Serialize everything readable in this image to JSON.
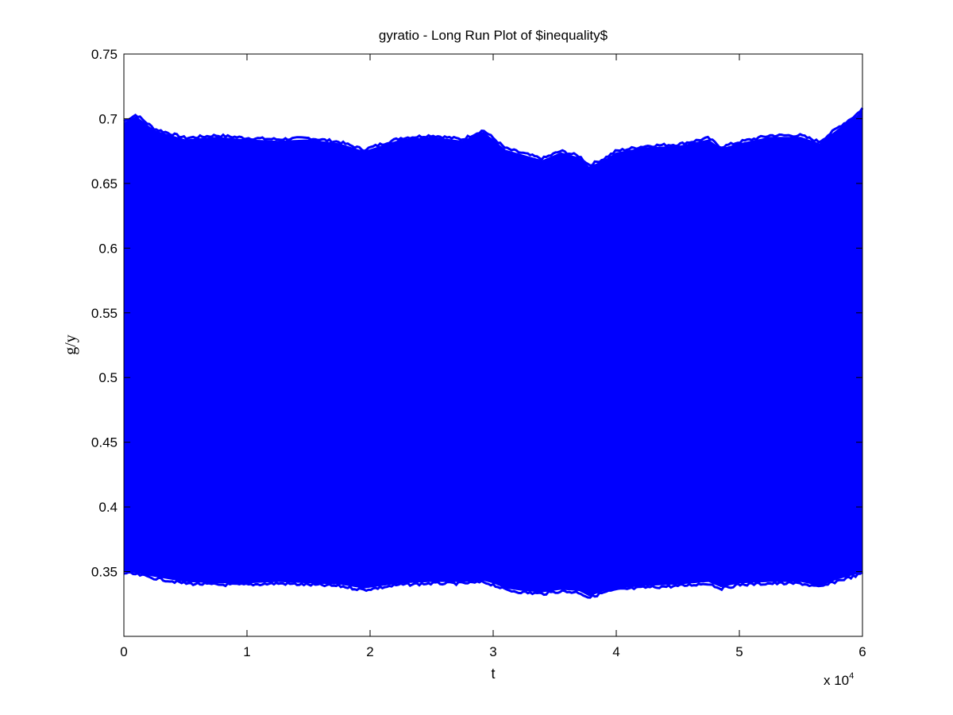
{
  "chart_data": {
    "type": "area",
    "title": "gyratio - Long Run Plot of $inequality$",
    "xlabel": "t",
    "ylabel": "g/y",
    "x_multiplier": {
      "prefix": "x 10",
      "exponent": "4"
    },
    "xlim": [
      0,
      6
    ],
    "ylim": [
      0.3,
      0.75
    ],
    "xticks": [
      "0",
      "1",
      "2",
      "3",
      "4",
      "5",
      "6"
    ],
    "yticks": [
      "0.35",
      "0.4",
      "0.45",
      "0.5",
      "0.55",
      "0.6",
      "0.65",
      "0.7",
      "0.75"
    ],
    "grid": false,
    "fill_color": "#0000ff",
    "x": [
      0,
      0.1,
      0.25,
      0.5,
      0.75,
      1.0,
      1.25,
      1.5,
      1.75,
      1.95,
      2.25,
      2.5,
      2.75,
      2.92,
      3.0,
      3.1,
      3.25,
      3.4,
      3.55,
      3.7,
      3.78,
      3.9,
      4.0,
      4.25,
      4.5,
      4.75,
      4.85,
      5.0,
      5.25,
      5.5,
      5.65,
      5.8,
      5.95,
      6.0
    ],
    "upper": [
      0.697,
      0.702,
      0.691,
      0.684,
      0.686,
      0.684,
      0.683,
      0.684,
      0.681,
      0.675,
      0.684,
      0.686,
      0.683,
      0.69,
      0.684,
      0.676,
      0.672,
      0.668,
      0.674,
      0.67,
      0.663,
      0.668,
      0.674,
      0.678,
      0.679,
      0.684,
      0.677,
      0.681,
      0.686,
      0.686,
      0.681,
      0.692,
      0.702,
      0.707
    ],
    "lower": [
      0.35,
      0.349,
      0.346,
      0.342,
      0.341,
      0.341,
      0.342,
      0.341,
      0.34,
      0.337,
      0.341,
      0.342,
      0.342,
      0.343,
      0.341,
      0.337,
      0.335,
      0.334,
      0.336,
      0.335,
      0.331,
      0.335,
      0.337,
      0.339,
      0.34,
      0.342,
      0.338,
      0.341,
      0.342,
      0.342,
      0.339,
      0.344,
      0.348,
      0.35
    ]
  }
}
